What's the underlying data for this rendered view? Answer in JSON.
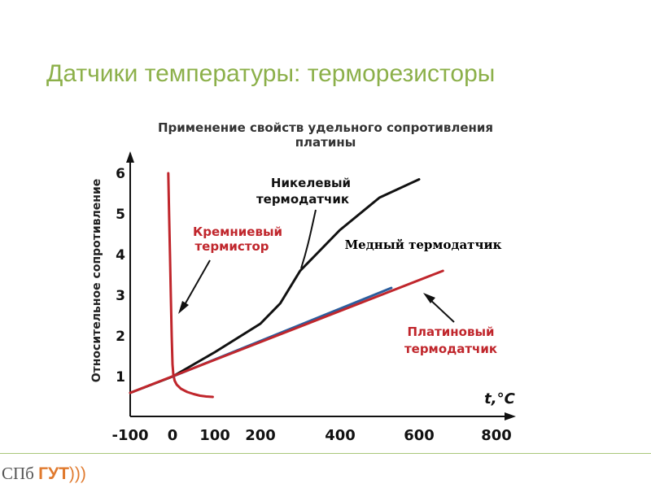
{
  "slide": {
    "title": "Датчики температуры: терморезисторы"
  },
  "chart_data": {
    "type": "line",
    "title": "Применение свойств удельного сопротивления платины",
    "title_line1": "Применение свойств удельного сопротивления",
    "title_line2": "платины",
    "xlabel": "t,°C",
    "ylabel": "Относительное сопротивление",
    "xlim": [
      -100,
      800
    ],
    "ylim": [
      0.5,
      6.2
    ],
    "x_ticks": [
      "-100",
      "0",
      "100",
      "200",
      "400",
      "600",
      "800"
    ],
    "y_ticks": [
      "1",
      "2",
      "3",
      "4",
      "5",
      "6"
    ],
    "grid": false,
    "series": [
      {
        "name": "Кремниевый термистор",
        "color": "#c0262c",
        "x": [
          -10,
          -8,
          -6,
          -4,
          -2,
          0,
          2,
          5,
          10,
          20,
          35,
          50,
          65,
          80,
          95
        ],
        "y": [
          6.0,
          5.0,
          4.0,
          3.0,
          2.0,
          1.3,
          1.05,
          0.9,
          0.8,
          0.7,
          0.62,
          0.57,
          0.53,
          0.51,
          0.5
        ]
      },
      {
        "name": "Никелевый термодатчик",
        "color": "#111111",
        "x": [
          -100,
          0,
          100,
          200,
          250,
          300,
          400,
          500,
          600
        ],
        "y": [
          0.6,
          1.0,
          1.6,
          2.3,
          2.8,
          3.6,
          4.6,
          5.4,
          5.85
        ]
      },
      {
        "name": "Медный термодатчик",
        "color": "#2b5e9e",
        "x": [
          0,
          530
        ],
        "y": [
          1.0,
          3.18
        ]
      },
      {
        "name": "Платиновый термодатчик",
        "color": "#c0262c",
        "x": [
          -100,
          660
        ],
        "y": [
          0.6,
          3.6
        ]
      }
    ],
    "annotations": [
      {
        "text_line1": "Кремниевый",
        "text_line2": "термистор",
        "color": "#c0262c"
      },
      {
        "text_line1": "Никелевый",
        "text_line2": "термодатчик",
        "color": "#111111"
      },
      {
        "text": "Медный термодатчик",
        "color": "#000000"
      },
      {
        "text_line1": "Платиновый",
        "text_line2": "термодатчик",
        "color": "#c0262c"
      }
    ]
  },
  "footer": {
    "logo_part1": "СПб ",
    "logo_part2": "ГУТ",
    "logo_part3": ")))"
  }
}
